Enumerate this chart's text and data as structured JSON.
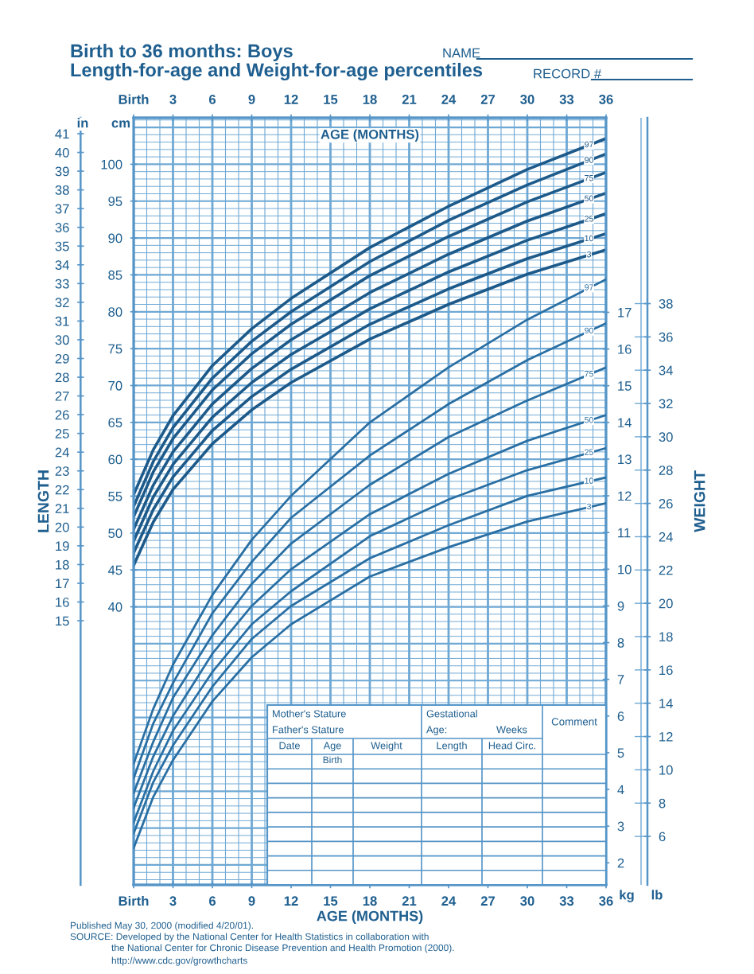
{
  "chart_data": [
    {
      "type": "line",
      "title": "Birth to 36 months: Boys",
      "subtitle": "Length-for-age and Weight-for-age percentiles",
      "xlabel": "AGE (MONTHS)",
      "x2label": "AGE (MONTHS)",
      "ylabel": "LENGTH",
      "y2label": "WEIGHT",
      "x": [
        0,
        1.5,
        3,
        6,
        9,
        12,
        18,
        24,
        30,
        36
      ],
      "xlim": [
        0,
        36
      ],
      "xticks": [
        {
          "value": 0,
          "label": "Birth"
        },
        3,
        6,
        9,
        12,
        15,
        18,
        21,
        24,
        27,
        30,
        33,
        36
      ],
      "x2lim": [
        0,
        36
      ],
      "x2ticks": [
        {
          "value": 0,
          "label": "Birth"
        },
        3,
        6,
        9,
        12,
        15,
        18,
        21,
        24,
        27,
        30,
        33,
        36
      ],
      "ylim": [
        2.3,
        106.3
      ],
      "yticks": [
        40,
        45,
        50,
        55,
        60,
        65,
        70,
        75,
        80,
        85,
        90,
        95,
        100
      ],
      "y2lim": [
        1.4,
        22.3
      ],
      "y2ticks": [
        2,
        3,
        4,
        5,
        6,
        7,
        8,
        9,
        10,
        11,
        12,
        13,
        14,
        15,
        16,
        17
      ],
      "y3lim": [
        0.9,
        41.85
      ],
      "y3ticks": [
        15,
        16,
        17,
        18,
        19,
        20,
        21,
        22,
        23,
        24,
        25,
        26,
        27,
        28,
        29,
        30,
        31,
        32,
        33,
        34,
        35,
        36,
        37,
        38,
        39,
        40,
        41
      ],
      "grid": true,
      "marker": "none",
      "line_style": "solid",
      "annotations": [
        "NAME",
        "RECORD #",
        "Mother's Stature",
        "Father's Stature",
        "Gestational",
        "Age:",
        "Weeks",
        "Comment",
        "Date",
        "Age",
        "Weight",
        "Length",
        "Head Circ.",
        "Birth",
        "Published May 30, 2000 (modified 4/20/01).",
        "SOURCE: Developed by the National Center for Health Statistics in collaboration with",
        "the National Center for Chronic Disease Prevention and Health Promotion (2000).",
        "http://www.cdc.gov/growthcharts",
        "in",
        "cm",
        "kg",
        "lb"
      ],
      "series": [
        {
          "name": "97",
          "color": "#1d5a8a",
          "axis": "y",
          "values": [
            55.2,
            61.3,
            65.9,
            72.7,
            77.7,
            81.8,
            88.7,
            94.3,
            99.3,
            103.5
          ]
        },
        {
          "name": "90",
          "color": "#1d5a8a",
          "axis": "y",
          "values": [
            53.6,
            59.7,
            64.3,
            71.0,
            76.0,
            80.0,
            86.8,
            92.4,
            97.2,
            101.4
          ]
        },
        {
          "name": "75",
          "color": "#1d5a8a",
          "axis": "y",
          "values": [
            52.2,
            58.3,
            62.8,
            69.4,
            74.3,
            78.3,
            84.9,
            90.2,
            94.9,
            98.9
          ]
        },
        {
          "name": "50",
          "color": "#1d5a8a",
          "axis": "y",
          "values": [
            50.5,
            56.5,
            61.0,
            67.5,
            72.3,
            76.2,
            82.6,
            87.8,
            92.3,
            96.1
          ]
        },
        {
          "name": "25",
          "color": "#1d5a8a",
          "axis": "y",
          "values": [
            48.9,
            54.9,
            59.3,
            65.7,
            70.4,
            74.2,
            80.4,
            85.4,
            89.7,
            93.3
          ]
        },
        {
          "name": "10",
          "color": "#1d5a8a",
          "axis": "y",
          "values": [
            47.3,
            53.2,
            57.6,
            63.9,
            68.5,
            72.2,
            78.3,
            83.1,
            87.2,
            90.6
          ]
        },
        {
          "name": "3",
          "color": "#1d5a8a",
          "axis": "y",
          "values": [
            45.6,
            51.5,
            55.9,
            62.1,
            66.7,
            70.4,
            76.3,
            81.0,
            85.1,
            88.4
          ]
        },
        {
          "name": "97",
          "color": "#2a6fa3",
          "axis": "y2",
          "values": [
            4.7,
            6.2,
            7.4,
            9.3,
            10.8,
            12.0,
            14.0,
            15.5,
            16.8,
            17.9
          ]
        },
        {
          "name": "90",
          "color": "#2a6fa3",
          "axis": "y2",
          "values": [
            4.3,
            5.8,
            6.9,
            8.8,
            10.2,
            11.4,
            13.1,
            14.5,
            15.7,
            16.7
          ]
        },
        {
          "name": "75",
          "color": "#2a6fa3",
          "axis": "y2",
          "values": [
            3.9,
            5.3,
            6.5,
            8.2,
            9.6,
            10.7,
            12.3,
            13.6,
            14.6,
            15.5
          ]
        },
        {
          "name": "50",
          "color": "#2a6fa3",
          "axis": "y2",
          "values": [
            3.5,
            4.9,
            6.0,
            7.7,
            9.0,
            10.0,
            11.5,
            12.6,
            13.5,
            14.2
          ]
        },
        {
          "name": "25",
          "color": "#2a6fa3",
          "axis": "y2",
          "values": [
            3.1,
            4.5,
            5.6,
            7.2,
            8.5,
            9.4,
            10.9,
            11.9,
            12.7,
            13.3
          ]
        },
        {
          "name": "10",
          "color": "#2a6fa3",
          "axis": "y2",
          "values": [
            2.8,
            4.2,
            5.2,
            6.8,
            8.1,
            9.0,
            10.3,
            11.2,
            12.0,
            12.5
          ]
        },
        {
          "name": "3",
          "color": "#2a6fa3",
          "axis": "y2",
          "values": [
            2.4,
            3.8,
            4.8,
            6.4,
            7.6,
            8.5,
            9.8,
            10.6,
            11.3,
            11.8
          ]
        }
      ]
    },
    {
      "type": "line",
      "categories": [
        null
      ],
      "tick_labels": "y",
      "grid": true,
      "ylim": [
        3.09,
        49.16
      ],
      "yticks": [
        6,
        8,
        10,
        12,
        14,
        16,
        18,
        20,
        22,
        24,
        26,
        28,
        30,
        32,
        34,
        36,
        38
      ]
    }
  ]
}
